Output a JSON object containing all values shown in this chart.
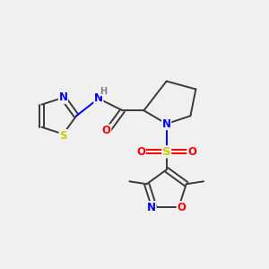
{
  "background_color": "#f0f0f0",
  "C_color": "#3a3a3a",
  "N_color": "#0000ff",
  "O_color": "#ff0000",
  "S_color": "#cccc00",
  "H_color": "#808080",
  "lw": 1.4,
  "fs": 8.5,
  "fs_small": 7.0,
  "xlim": [
    0,
    10
  ],
  "ylim": [
    0,
    10
  ]
}
